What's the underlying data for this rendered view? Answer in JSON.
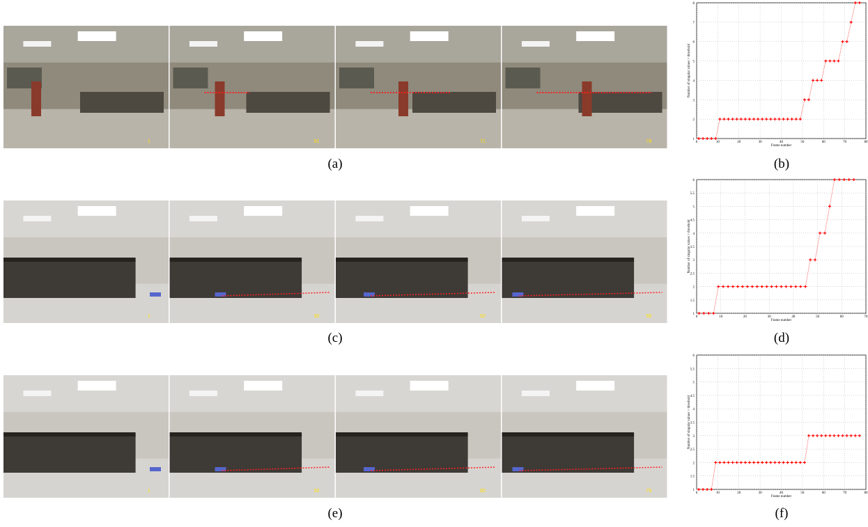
{
  "figure": {
    "rows": [
      {
        "caption": "(a)",
        "chart_caption": "(b)",
        "frames": [
          "1",
          "51",
          "71",
          "78"
        ]
      },
      {
        "caption": "(c)",
        "chart_caption": "(d)",
        "frames": [
          "1",
          "30",
          "52",
          "56"
        ]
      },
      {
        "caption": "(e)",
        "chart_caption": "(f)",
        "frames": [
          "1",
          "20",
          "65",
          "76"
        ]
      }
    ]
  },
  "chart_data": [
    {
      "type": "line",
      "xlabel": "Frame number",
      "ylabel": "Number of singular values > threshold",
      "x": [
        1,
        3,
        5,
        7,
        9,
        11,
        13,
        15,
        17,
        19,
        21,
        23,
        25,
        27,
        29,
        31,
        33,
        35,
        37,
        39,
        41,
        43,
        45,
        47,
        49,
        51,
        53,
        55,
        57,
        59,
        61,
        63,
        65,
        67,
        69,
        71,
        73,
        75,
        77
      ],
      "series": [
        {
          "color": "#ff0000",
          "values": [
            1,
            1,
            1,
            1,
            1,
            2,
            2,
            2,
            2,
            2,
            2,
            2,
            2,
            2,
            2,
            2,
            2,
            2,
            2,
            2,
            2,
            2,
            2,
            2,
            2,
            3,
            3,
            4,
            4,
            4,
            5,
            5,
            5,
            5,
            6,
            6,
            7,
            8,
            8
          ]
        }
      ],
      "xlim": [
        0,
        80
      ],
      "xticks": [
        0,
        10,
        20,
        30,
        40,
        50,
        60,
        70,
        80
      ],
      "ylim": [
        1,
        8
      ],
      "yticks": [
        1,
        2,
        3,
        4,
        5,
        6,
        7,
        8
      ],
      "grid": true
    },
    {
      "type": "line",
      "xlabel": "Frame number",
      "ylabel": "Number of singular values > threshold",
      "x": [
        1,
        3,
        5,
        7,
        9,
        11,
        13,
        15,
        17,
        19,
        21,
        23,
        25,
        27,
        29,
        31,
        33,
        35,
        37,
        39,
        41,
        43,
        45,
        47,
        49,
        51,
        53,
        55,
        57,
        59,
        61,
        63,
        65
      ],
      "series": [
        {
          "color": "#ff0000",
          "values": [
            1,
            1,
            1,
            1,
            2,
            2,
            2,
            2,
            2,
            2,
            2,
            2,
            2,
            2,
            2,
            2,
            2,
            2,
            2,
            2,
            2,
            2,
            2,
            3,
            3,
            4,
            4,
            5,
            6,
            6,
            6,
            6,
            6
          ]
        }
      ],
      "xlim": [
        0,
        70
      ],
      "xticks": [
        0,
        10,
        20,
        30,
        40,
        50,
        60,
        70
      ],
      "ylim": [
        1,
        6
      ],
      "yticks": [
        1,
        1.5,
        2,
        2.5,
        3,
        3.5,
        4,
        4.5,
        5,
        5.5,
        6
      ],
      "grid": true
    },
    {
      "type": "line",
      "xlabel": "Frame number",
      "ylabel": "Number of singular values > threshold",
      "x": [
        1,
        3,
        5,
        7,
        9,
        11,
        13,
        15,
        17,
        19,
        21,
        23,
        25,
        27,
        29,
        31,
        33,
        35,
        37,
        39,
        41,
        43,
        45,
        47,
        49,
        51,
        53,
        55,
        57,
        59,
        61,
        63,
        65,
        67,
        69,
        71,
        73,
        75,
        77
      ],
      "series": [
        {
          "color": "#ff0000",
          "values": [
            1,
            1,
            1,
            1,
            2,
            2,
            2,
            2,
            2,
            2,
            2,
            2,
            2,
            2,
            2,
            2,
            2,
            2,
            2,
            2,
            2,
            2,
            2,
            2,
            2,
            2,
            3,
            3,
            3,
            3,
            3,
            3,
            3,
            3,
            3,
            3,
            3,
            3,
            3
          ]
        }
      ],
      "xlim": [
        0,
        80
      ],
      "xticks": [
        0,
        10,
        20,
        30,
        40,
        50,
        60,
        70,
        80
      ],
      "ylim": [
        1,
        6
      ],
      "yticks": [
        1,
        1.5,
        2,
        2.5,
        3,
        3.5,
        4,
        4.5,
        5,
        5.5,
        6
      ],
      "grid": true
    }
  ]
}
